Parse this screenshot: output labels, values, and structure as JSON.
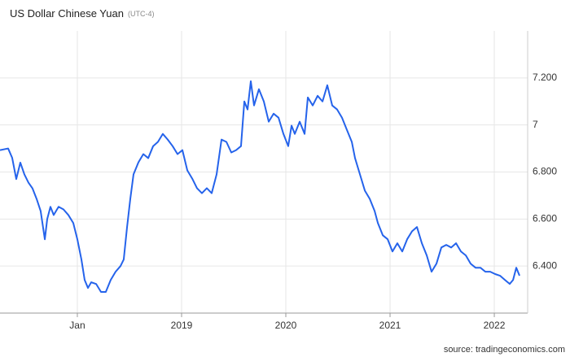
{
  "chart_data": {
    "type": "line",
    "title": "US Dollar Chinese Yuan",
    "subtitle": "(UTC-4)",
    "source": "source: tradingeconomics.com",
    "x": [
      2017.258,
      2017.336,
      2017.375,
      2017.414,
      2017.453,
      2017.492,
      2017.531,
      2017.57,
      2017.609,
      2017.648,
      2017.688,
      2017.711,
      2017.742,
      2017.773,
      2017.82,
      2017.867,
      2017.914,
      2017.961,
      2018.0,
      2018.039,
      2018.07,
      2018.102,
      2018.133,
      2018.18,
      2018.227,
      2018.273,
      2018.32,
      2018.367,
      2018.414,
      2018.445,
      2018.477,
      2018.508,
      2018.539,
      2018.586,
      2018.633,
      2018.68,
      2018.727,
      2018.773,
      2018.82,
      2018.867,
      2018.914,
      2018.961,
      2019.008,
      2019.055,
      2019.102,
      2019.148,
      2019.195,
      2019.242,
      2019.289,
      2019.336,
      2019.383,
      2019.43,
      2019.477,
      2019.523,
      2019.57,
      2019.602,
      2019.633,
      2019.664,
      2019.695,
      2019.742,
      2019.789,
      2019.836,
      2019.883,
      2019.93,
      2019.977,
      2020.023,
      2020.055,
      2020.086,
      2020.133,
      2020.18,
      2020.211,
      2020.258,
      2020.305,
      2020.352,
      2020.398,
      2020.445,
      2020.492,
      2020.539,
      2020.586,
      2020.633,
      2020.664,
      2020.711,
      2020.758,
      2020.805,
      2020.852,
      2020.883,
      2020.93,
      2020.977,
      2021.023,
      2021.07,
      2021.117,
      2021.164,
      2021.211,
      2021.258,
      2021.305,
      2021.352,
      2021.398,
      2021.445,
      2021.492,
      2021.539,
      2021.586,
      2021.633,
      2021.68,
      2021.727,
      2021.773,
      2021.82,
      2021.867,
      2021.914,
      2021.961,
      2022.008,
      2022.055,
      2022.102,
      2022.148,
      2022.18,
      2022.211,
      2022.242
    ],
    "series": [
      {
        "name": "USDCNY",
        "color": "#2563eb",
        "values": [
          6.893,
          6.9,
          6.86,
          6.77,
          6.84,
          6.79,
          6.755,
          6.73,
          6.686,
          6.634,
          6.514,
          6.6,
          6.652,
          6.617,
          6.652,
          6.641,
          6.617,
          6.583,
          6.514,
          6.428,
          6.341,
          6.307,
          6.331,
          6.324,
          6.29,
          6.29,
          6.341,
          6.376,
          6.4,
          6.428,
          6.566,
          6.686,
          6.79,
          6.841,
          6.876,
          6.859,
          6.91,
          6.928,
          6.962,
          6.938,
          6.91,
          6.876,
          6.893,
          6.807,
          6.772,
          6.731,
          6.71,
          6.731,
          6.71,
          6.79,
          6.938,
          6.928,
          6.883,
          6.893,
          6.91,
          7.1,
          7.066,
          7.186,
          7.083,
          7.152,
          7.1,
          7.014,
          7.048,
          7.031,
          6.962,
          6.91,
          6.997,
          6.962,
          7.014,
          6.962,
          7.117,
          7.083,
          7.124,
          7.1,
          7.169,
          7.083,
          7.066,
          7.031,
          6.979,
          6.928,
          6.859,
          6.79,
          6.721,
          6.686,
          6.634,
          6.583,
          6.531,
          6.514,
          6.462,
          6.497,
          6.462,
          6.514,
          6.548,
          6.566,
          6.497,
          6.445,
          6.376,
          6.41,
          6.479,
          6.49,
          6.479,
          6.497,
          6.462,
          6.445,
          6.41,
          6.393,
          6.393,
          6.376,
          6.376,
          6.366,
          6.359,
          6.341,
          6.324,
          6.341,
          6.393,
          6.359
        ]
      }
    ],
    "xlim": [
      2017.258,
      2022.32
    ],
    "xticks": [
      {
        "value": 2018,
        "label": "Jan"
      },
      2019,
      2020,
      2021,
      2022
    ],
    "ylim": [
      6.2,
      7.4
    ],
    "yticks": [
      {
        "value": 6.4,
        "label": "6.400"
      },
      {
        "value": 6.6,
        "label": "6.600"
      },
      {
        "value": 6.8,
        "label": "6.800"
      },
      7,
      {
        "value": 7.2,
        "label": "7.200"
      }
    ],
    "grid": true
  }
}
